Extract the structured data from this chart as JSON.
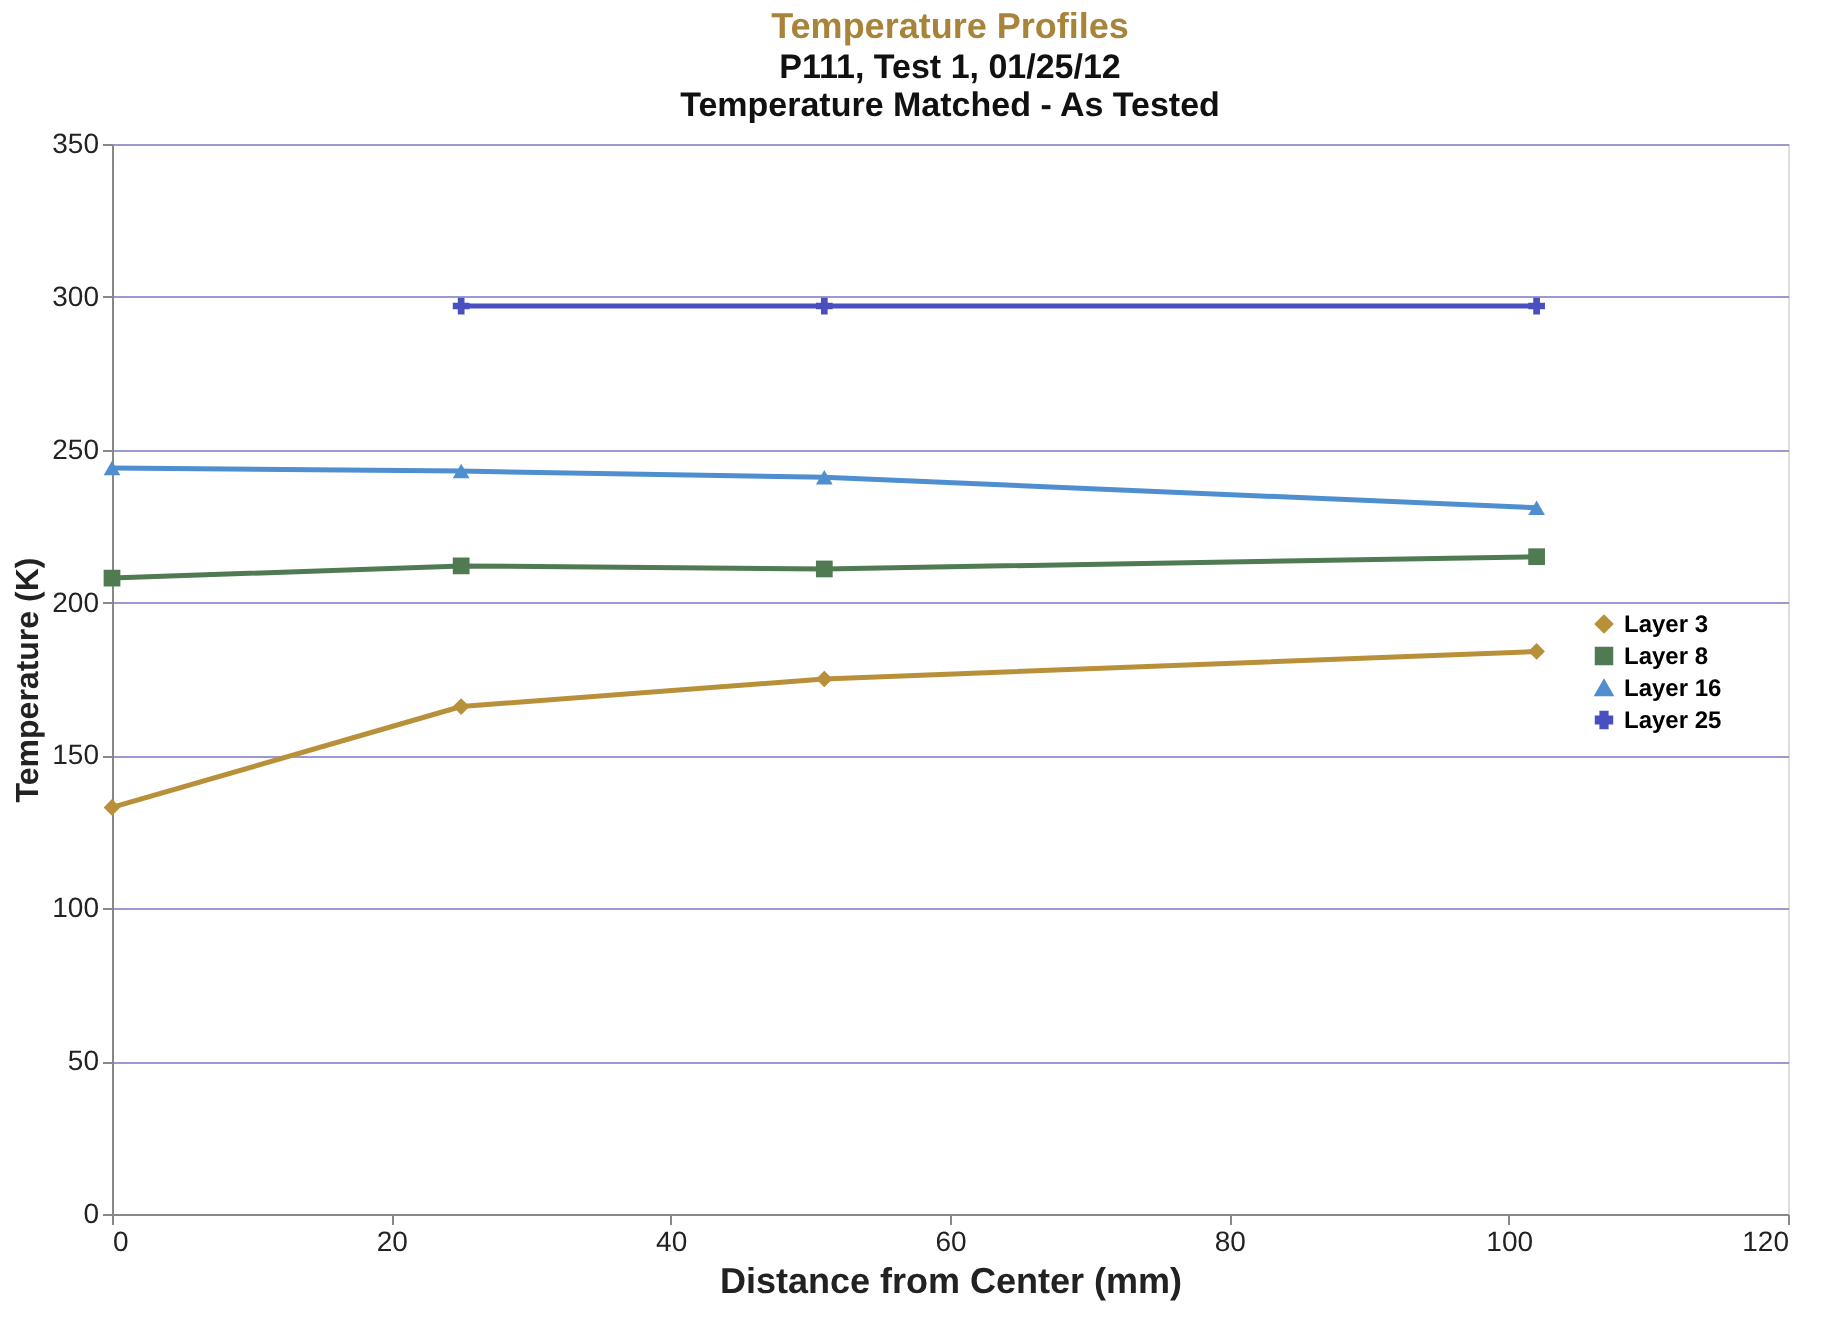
{
  "chart_data": {
    "type": "line",
    "title": "Temperature Profiles",
    "subtitle": [
      "P111, Test 1, 01/25/12",
      "Temperature Matched - As Tested"
    ],
    "xlabel": "Distance from Center (mm)",
    "ylabel": "Temperature (K)",
    "series": [
      {
        "name": "Layer 3",
        "color": "#b8903a",
        "marker": "diamond",
        "x": [
          0,
          25,
          51,
          102
        ],
        "values": [
          133,
          166,
          175,
          184
        ]
      },
      {
        "name": "Layer 8",
        "color": "#4f7a52",
        "marker": "square",
        "x": [
          0,
          25,
          51,
          102
        ],
        "values": [
          208,
          212,
          211,
          215
        ]
      },
      {
        "name": "Layer 16",
        "color": "#4f8fcf",
        "marker": "triangle",
        "x": [
          0,
          25,
          51,
          102
        ],
        "values": [
          244,
          243,
          241,
          231
        ]
      },
      {
        "name": "Layer 25",
        "color": "#4a4fc0",
        "marker": "cross",
        "x": [
          25,
          51,
          102
        ],
        "values": [
          297,
          297,
          297
        ]
      }
    ],
    "xlim": [
      0,
      120
    ],
    "xticks": [
      0,
      20,
      40,
      60,
      80,
      100,
      120
    ],
    "ylim": [
      0,
      350
    ],
    "yticks": [
      0,
      50,
      100,
      150,
      200,
      250,
      300,
      350
    ],
    "grid": "y",
    "legend": "right",
    "line_style": "solid"
  }
}
